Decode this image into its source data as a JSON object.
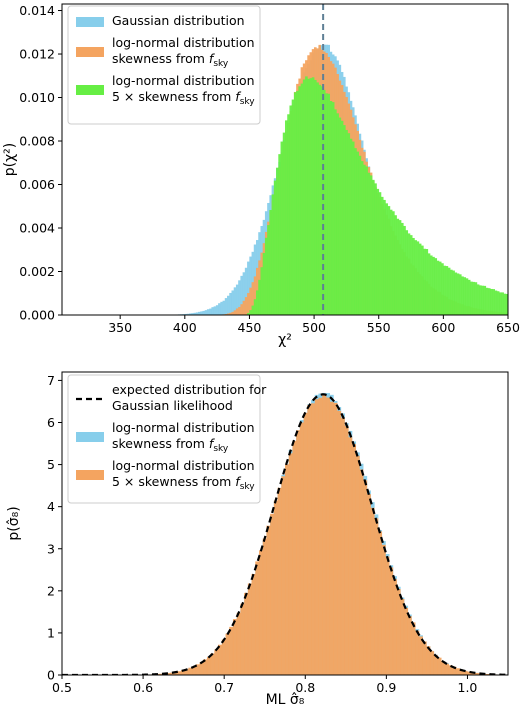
{
  "chart_data": [
    {
      "type": "histogram",
      "panel": "top",
      "xlabel": "χ²",
      "ylabel": "p(χ²)",
      "xlim": [
        305,
        650
      ],
      "ylim": [
        0,
        0.0143
      ],
      "xticks": [
        350,
        400,
        450,
        500,
        550,
        600,
        650
      ],
      "yticks": [
        0.0,
        0.002,
        0.004,
        0.006,
        0.008,
        0.01,
        0.012,
        0.014
      ],
      "ytick_labels": [
        "0.000",
        "0.002",
        "0.004",
        "0.006",
        "0.008",
        "0.010",
        "0.012",
        "0.014"
      ],
      "vline": {
        "x": 507,
        "style": "dashed",
        "color": "#5f7f95"
      },
      "legend_position": "upper-left",
      "series": [
        {
          "name": "Gaussian distribution",
          "color": "#87ceeb",
          "dist": "normal",
          "mean": 507,
          "std": 32,
          "peak": 0.0124
        },
        {
          "name": "log-normal distribution skewness from f_sky",
          "legend_lines": [
            "log-normal distribution",
            "skewness from f",
            "sky"
          ],
          "color": "#f4a460",
          "dist": "lognormal",
          "mean": 507,
          "std": 32.5,
          "skew": 0.25,
          "peak": 0.0122
        },
        {
          "name": "log-normal distribution 5 × skewness from f_sky",
          "legend_lines": [
            "log-normal distribution",
            "5 ×  skewness from f",
            "sky"
          ],
          "color": "#66ee44",
          "dist": "lognormal",
          "mean": 507,
          "std": 40,
          "skew": 0.6,
          "peak": 0.0104
        }
      ]
    },
    {
      "type": "histogram",
      "panel": "bottom",
      "xlabel": "ML σ̂₈",
      "ylabel": "p(σ̂₈)",
      "xlim": [
        0.5,
        1.05
      ],
      "ylim": [
        0,
        7.2
      ],
      "xticks": [
        0.5,
        0.6,
        0.7,
        0.8,
        0.9,
        1.0
      ],
      "xtick_labels": [
        "0.5",
        "0.6",
        "0.7",
        "0.8",
        "0.9",
        "1.0"
      ],
      "yticks": [
        0,
        1,
        2,
        3,
        4,
        5,
        6,
        7
      ],
      "legend_position": "upper-left",
      "series": [
        {
          "name": "expected distribution for Gaussian likelihood",
          "legend_lines": [
            "expected distribution for",
            "Gaussian likelihood"
          ],
          "type": "line",
          "style": "dashed",
          "color": "#000000",
          "dist": "normal",
          "mean": 0.822,
          "std": 0.06,
          "peak": 6.67
        },
        {
          "name": "log-normal distribution skewness from f_sky",
          "legend_lines": [
            "log-normal distribution",
            "skewness from f",
            "sky"
          ],
          "color": "#87ceeb",
          "dist": "normal",
          "mean": 0.823,
          "std": 0.06,
          "peak": 6.7
        },
        {
          "name": "log-normal distribution 5 × skewness from f_sky",
          "legend_lines": [
            "log-normal distribution",
            "5 ×  skewness from f",
            "sky"
          ],
          "color": "#f4a460",
          "dist": "normal",
          "mean": 0.822,
          "std": 0.0605,
          "peak": 6.62
        }
      ]
    }
  ]
}
